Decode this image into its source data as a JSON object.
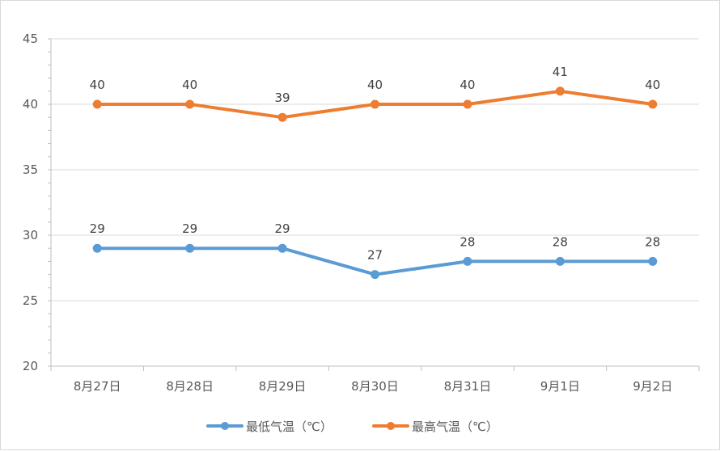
{
  "chart_data": {
    "type": "line",
    "categories": [
      "8月27日",
      "8月28日",
      "8月29日",
      "8月30日",
      "8月31日",
      "9月1日",
      "9月2日"
    ],
    "series": [
      {
        "name": "最低气温（℃）",
        "color": "#5b9bd5",
        "values": [
          29,
          29,
          29,
          27,
          28,
          28,
          28
        ]
      },
      {
        "name": "最高气温（℃）",
        "color": "#ed7d31",
        "values": [
          40,
          40,
          39,
          40,
          40,
          41,
          40
        ]
      }
    ],
    "ylim": [
      20,
      45
    ],
    "yticks": [
      20,
      25,
      30,
      35,
      40,
      45
    ],
    "grid": true,
    "data_labels": true,
    "legend": "bottom"
  }
}
